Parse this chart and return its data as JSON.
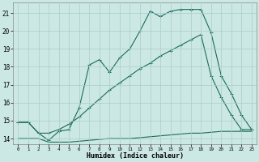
{
  "xlabel": "Humidex (Indice chaleur)",
  "bg_color": "#cce8e4",
  "grid_color": "#aaccca",
  "line_color": "#1a6b5a",
  "xlim": [
    -0.5,
    23.5
  ],
  "ylim": [
    13.7,
    21.6
  ],
  "yticks": [
    14,
    15,
    16,
    17,
    18,
    19,
    20,
    21
  ],
  "xticks": [
    0,
    1,
    2,
    3,
    4,
    5,
    6,
    7,
    8,
    9,
    10,
    11,
    12,
    13,
    14,
    15,
    16,
    17,
    18,
    19,
    20,
    21,
    22,
    23
  ],
  "line1_x": [
    0,
    1,
    2,
    3,
    4,
    5,
    6,
    7,
    8,
    9,
    10,
    11,
    12,
    13,
    14,
    15,
    16,
    17,
    18,
    19,
    20,
    21,
    22,
    23
  ],
  "line1_y": [
    14.9,
    14.9,
    14.3,
    13.9,
    14.4,
    14.5,
    15.7,
    18.1,
    18.4,
    17.7,
    18.5,
    19.0,
    20.0,
    21.1,
    20.8,
    21.1,
    21.2,
    21.2,
    21.2,
    19.9,
    17.5,
    16.5,
    15.3,
    14.5
  ],
  "line2_x": [
    0,
    1,
    2,
    3,
    4,
    5,
    6,
    7,
    8,
    9,
    10,
    11,
    12,
    13,
    14,
    15,
    16,
    17,
    18,
    19,
    20,
    21,
    22,
    23
  ],
  "line2_y": [
    14.9,
    14.9,
    14.3,
    14.3,
    14.5,
    14.8,
    15.2,
    15.7,
    16.2,
    16.7,
    17.1,
    17.5,
    17.9,
    18.2,
    18.6,
    18.9,
    19.2,
    19.5,
    19.8,
    17.5,
    16.3,
    15.3,
    14.5,
    14.5
  ],
  "line3_x": [
    0,
    1,
    2,
    3,
    4,
    5,
    6,
    7,
    8,
    9,
    10,
    11,
    12,
    13,
    14,
    15,
    16,
    17,
    18,
    19,
    20,
    21,
    22,
    23
  ],
  "line3_y": [
    14.0,
    14.0,
    14.0,
    13.8,
    13.8,
    13.8,
    13.85,
    13.9,
    13.95,
    14.0,
    14.0,
    14.0,
    14.05,
    14.1,
    14.15,
    14.2,
    14.25,
    14.3,
    14.3,
    14.35,
    14.4,
    14.4,
    14.4,
    14.4
  ]
}
